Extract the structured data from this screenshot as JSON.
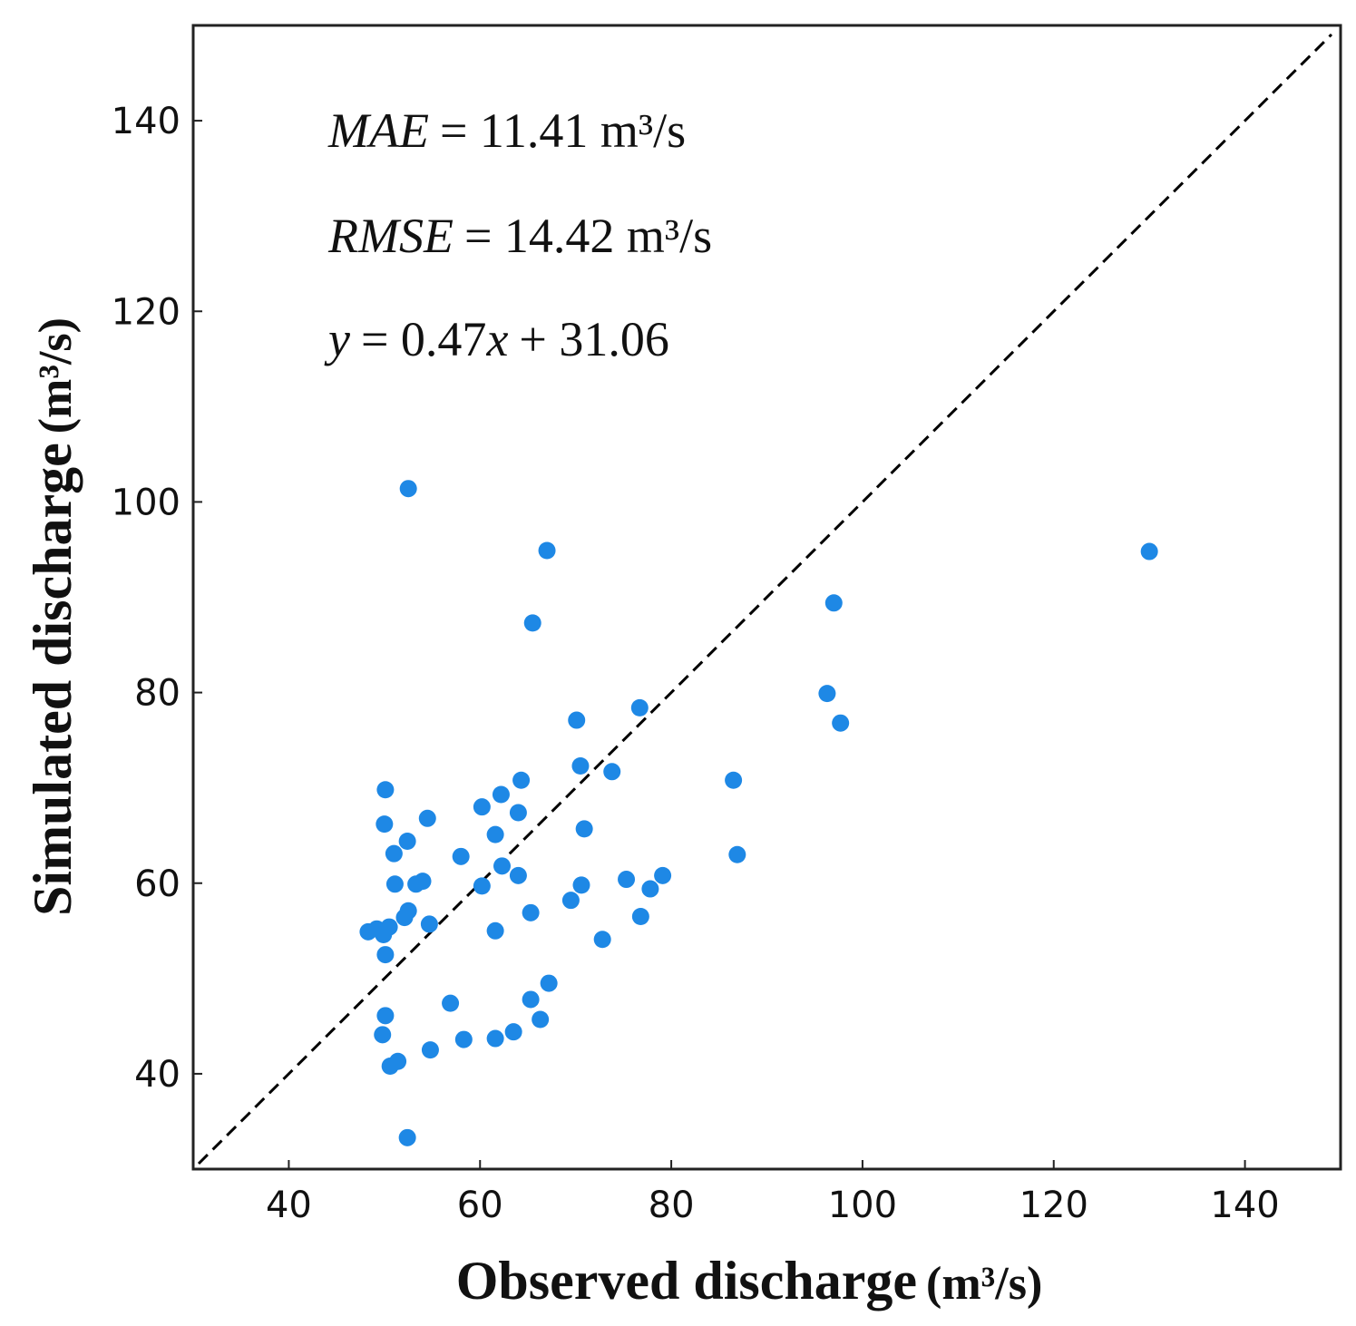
{
  "chart_data": {
    "type": "scatter",
    "title": "",
    "xlabel": "Observed discharge",
    "xlabel_unit": "(m³/s)",
    "ylabel": "Simulated discharge",
    "ylabel_unit": "(m³/s)",
    "xlim": [
      30,
      150
    ],
    "ylim": [
      30,
      150
    ],
    "xticks": [
      40,
      60,
      80,
      100,
      120,
      140
    ],
    "yticks": [
      40,
      60,
      80,
      100,
      120,
      140
    ],
    "grid": false,
    "marker_color": "#1E88E5",
    "reference_line": {
      "type": "1:1",
      "style": "dashed",
      "color": "#000000"
    },
    "annotations": {
      "mae": {
        "name": "MAE",
        "value": "= 11.41 m³/s"
      },
      "rmse": {
        "name": "RMSE",
        "value": "= 14.42 m³/s"
      },
      "fit": {
        "y": "y",
        "eq": "= 0.47",
        "x": "x",
        "rest": "+ 31.06"
      }
    },
    "points": [
      [
        52.5,
        101.4
      ],
      [
        67.0,
        94.9
      ],
      [
        130.0,
        94.8
      ],
      [
        97.0,
        89.4
      ],
      [
        65.5,
        87.3
      ],
      [
        96.3,
        79.9
      ],
      [
        97.7,
        76.8
      ],
      [
        76.7,
        78.4
      ],
      [
        70.1,
        77.1
      ],
      [
        70.5,
        72.3
      ],
      [
        73.8,
        71.7
      ],
      [
        86.5,
        70.8
      ],
      [
        64.3,
        70.8
      ],
      [
        50.1,
        69.8
      ],
      [
        62.2,
        69.3
      ],
      [
        60.2,
        68.0
      ],
      [
        64.0,
        67.4
      ],
      [
        54.5,
        66.8
      ],
      [
        50.0,
        66.2
      ],
      [
        70.9,
        65.7
      ],
      [
        61.6,
        65.1
      ],
      [
        52.4,
        64.4
      ],
      [
        51.0,
        63.1
      ],
      [
        86.9,
        63.0
      ],
      [
        58.0,
        62.8
      ],
      [
        62.3,
        61.8
      ],
      [
        64.0,
        60.8
      ],
      [
        79.1,
        60.8
      ],
      [
        75.3,
        60.4
      ],
      [
        54.0,
        60.2
      ],
      [
        53.3,
        59.9
      ],
      [
        51.1,
        59.9
      ],
      [
        70.6,
        59.8
      ],
      [
        60.2,
        59.7
      ],
      [
        77.8,
        59.4
      ],
      [
        69.5,
        58.2
      ],
      [
        52.5,
        57.1
      ],
      [
        65.3,
        56.9
      ],
      [
        52.1,
        56.4
      ],
      [
        76.8,
        56.5
      ],
      [
        54.7,
        55.7
      ],
      [
        48.3,
        54.9
      ],
      [
        49.2,
        55.2
      ],
      [
        50.5,
        55.4
      ],
      [
        49.9,
        54.6
      ],
      [
        61.6,
        55.0
      ],
      [
        72.8,
        54.1
      ],
      [
        50.1,
        52.5
      ],
      [
        67.2,
        49.5
      ],
      [
        56.9,
        47.4
      ],
      [
        65.3,
        47.8
      ],
      [
        50.1,
        46.1
      ],
      [
        66.3,
        45.7
      ],
      [
        49.8,
        44.1
      ],
      [
        63.5,
        44.4
      ],
      [
        58.3,
        43.6
      ],
      [
        61.6,
        43.7
      ],
      [
        54.8,
        42.5
      ],
      [
        51.4,
        41.3
      ],
      [
        50.6,
        40.8
      ],
      [
        52.4,
        33.3
      ]
    ]
  }
}
